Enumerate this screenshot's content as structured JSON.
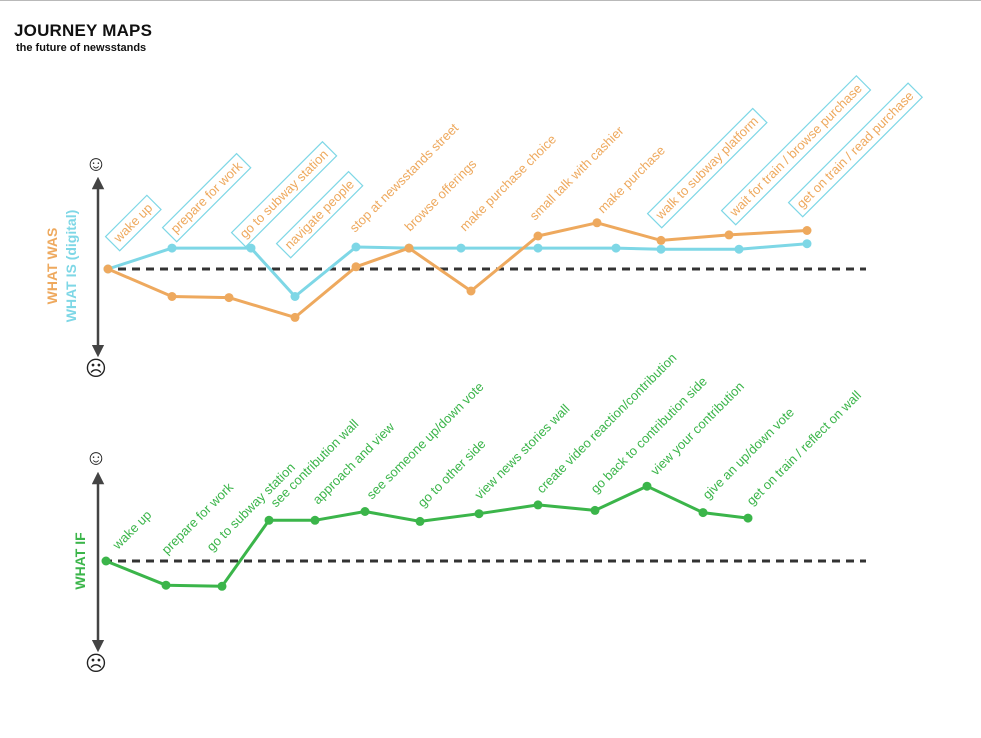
{
  "title": "JOURNEY MAPS",
  "subtitle": "the future of newsstands",
  "colors": {
    "was": "#EEA95E",
    "is": "#7ED7E6",
    "if": "#3BB54A",
    "axis": "#444444",
    "baseline": "#333333"
  },
  "chart_data": [
    {
      "type": "line",
      "ylabels": [
        "WHAT WAS",
        "WHAT IS (digital)"
      ],
      "y_top_icon": "☺",
      "y_bottom_icon": "☹",
      "ylim": [
        -1,
        1
      ],
      "series": [
        {
          "name": "WHAT WAS",
          "steps": [
            "wake up",
            "browse offerings",
            "make purchase choice",
            "small talk with cashier",
            "make purchase",
            "stop at newsstands street"
          ],
          "values": [
            0,
            -0.25,
            -0.26,
            -0.44,
            0.02,
            0.19,
            -0.2,
            0.3,
            0.42,
            0.26,
            0.31,
            0.35
          ]
        },
        {
          "name": "WHAT IS (digital)",
          "steps": [
            "wake up",
            "prepare for work",
            "go to subway station",
            "navigate people",
            "walk to subway platform",
            "wait for train / browse purchase",
            "get on train / read purchase"
          ],
          "values": [
            0,
            0.19,
            0.19,
            -0.25,
            0.2,
            0.19,
            0.19,
            0.19,
            0.19,
            0.18,
            0.18,
            0.23
          ]
        }
      ],
      "labels": [
        {
          "text": "wake up",
          "series": "WHAT IS (digital)",
          "boxed": true
        },
        {
          "text": "prepare for work",
          "series": "WHAT IS (digital)",
          "boxed": true
        },
        {
          "text": "go to subway station",
          "series": "WHAT IS (digital)",
          "boxed": true
        },
        {
          "text": "navigate people",
          "series": "WHAT IS (digital)",
          "boxed": true
        },
        {
          "text": "stop at newsstands street",
          "series": "WHAT WAS",
          "boxed": false
        },
        {
          "text": "browse offerings",
          "series": "WHAT WAS",
          "boxed": false
        },
        {
          "text": "make purchase choice",
          "series": "WHAT WAS",
          "boxed": false
        },
        {
          "text": "small talk with cashier",
          "series": "WHAT WAS",
          "boxed": false
        },
        {
          "text": "make purchase",
          "series": "WHAT WAS",
          "boxed": false
        },
        {
          "text": "walk to subway platform",
          "series": "WHAT IS (digital)",
          "boxed": true
        },
        {
          "text": "wait for train / browse purchase",
          "series": "WHAT IS (digital)",
          "boxed": true
        },
        {
          "text": "get on train / read purchase",
          "series": "WHAT IS (digital)",
          "boxed": true
        }
      ]
    },
    {
      "type": "line",
      "ylabels": [
        "WHAT IF"
      ],
      "y_top_icon": "☺",
      "y_bottom_icon": "☹",
      "ylim": [
        -1,
        1
      ],
      "series": [
        {
          "name": "WHAT IF",
          "values": [
            0,
            -0.22,
            -0.23,
            0.37,
            0.37,
            0.45,
            0.36,
            0.43,
            0.51,
            0.46,
            0.68,
            0.44,
            0.39
          ]
        }
      ],
      "labels": [
        "wake up",
        "prepare for work",
        "go to subway station",
        "see contribution wall",
        "approach and view",
        "see someone up/down  vote",
        "go to other side",
        "view news stories wall",
        "create video reaction/contribution",
        "go back to contribution side",
        "view your contribution",
        "give an up/down vote",
        "get on train / reflect on wall"
      ]
    }
  ]
}
